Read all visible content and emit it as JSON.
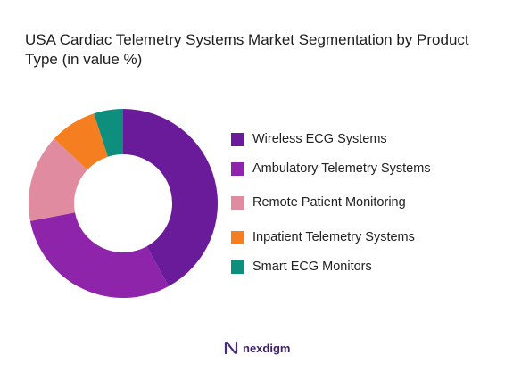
{
  "title": "USA Cardiac Telemetry Systems Market Segmentation by Product Type (in value %)",
  "brand": {
    "name": "nexdigm",
    "logo_icon": "nexdigm-logo-icon",
    "color": "#4a2a7a"
  },
  "chart_data": {
    "type": "pie",
    "donut": true,
    "title": "USA Cardiac Telemetry Systems Market Segmentation by Product Type (in value %)",
    "legend_position": "right",
    "series": [
      {
        "name": "Wireless ECG Systems",
        "value": 42,
        "color": "#6a1b9a"
      },
      {
        "name": "Ambulatory Telemetry Systems",
        "value": 30,
        "color": "#8e24aa"
      },
      {
        "name": "Remote Patient Monitoring",
        "value": 15,
        "color": "#e08ba0"
      },
      {
        "name": "Inpatient Telemetry Systems",
        "value": 8,
        "color": "#f57f20"
      },
      {
        "name": "Smart ECG Monitors",
        "value": 5,
        "color": "#0e8f7e"
      }
    ]
  }
}
